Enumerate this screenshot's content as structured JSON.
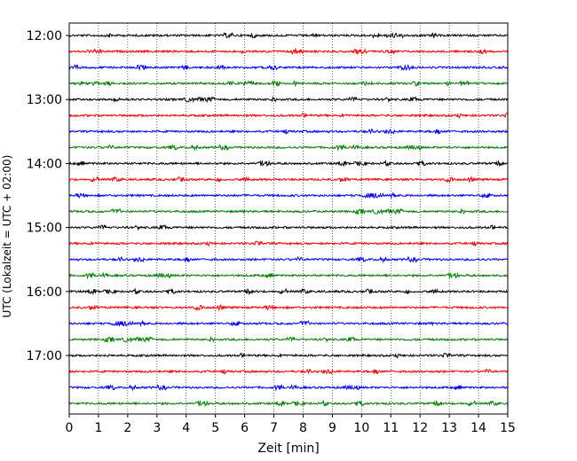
{
  "chart_data": {
    "type": "line",
    "title": "",
    "xlabel": "Zeit  [min]",
    "ylabel": "UTC (Lokalzeit = UTC + 02:00)",
    "xlim": [
      0,
      15
    ],
    "x_ticks": [
      "0",
      "1",
      "2",
      "3",
      "4",
      "5",
      "6",
      "7",
      "8",
      "9",
      "10",
      "11",
      "12",
      "13",
      "14",
      "15"
    ],
    "y_tick_labels": [
      "12:00",
      "13:00",
      "14:00",
      "15:00",
      "16:00",
      "17:00"
    ],
    "grid": "vertical-dotted",
    "trace_interval_min": 15,
    "trace_color_cycle": [
      "#000000",
      "#ff0000",
      "#0000ff",
      "#008000"
    ],
    "series": [
      {
        "start": "12:00",
        "color": "#000000"
      },
      {
        "start": "12:15",
        "color": "#ff0000"
      },
      {
        "start": "12:30",
        "color": "#0000ff"
      },
      {
        "start": "12:45",
        "color": "#008000"
      },
      {
        "start": "13:00",
        "color": "#000000"
      },
      {
        "start": "13:15",
        "color": "#ff0000"
      },
      {
        "start": "13:30",
        "color": "#0000ff"
      },
      {
        "start": "13:45",
        "color": "#008000"
      },
      {
        "start": "14:00",
        "color": "#000000"
      },
      {
        "start": "14:15",
        "color": "#ff0000"
      },
      {
        "start": "14:30",
        "color": "#0000ff"
      },
      {
        "start": "14:45",
        "color": "#008000"
      },
      {
        "start": "15:00",
        "color": "#000000"
      },
      {
        "start": "15:15",
        "color": "#ff0000"
      },
      {
        "start": "15:30",
        "color": "#0000ff"
      },
      {
        "start": "15:45",
        "color": "#008000"
      },
      {
        "start": "16:00",
        "color": "#000000"
      },
      {
        "start": "16:15",
        "color": "#ff0000"
      },
      {
        "start": "16:30",
        "color": "#0000ff"
      },
      {
        "start": "16:45",
        "color": "#008000"
      },
      {
        "start": "17:00",
        "color": "#000000"
      },
      {
        "start": "17:15",
        "color": "#ff0000"
      },
      {
        "start": "17:30",
        "color": "#0000ff"
      },
      {
        "start": "17:45",
        "color": "#008000"
      }
    ]
  }
}
